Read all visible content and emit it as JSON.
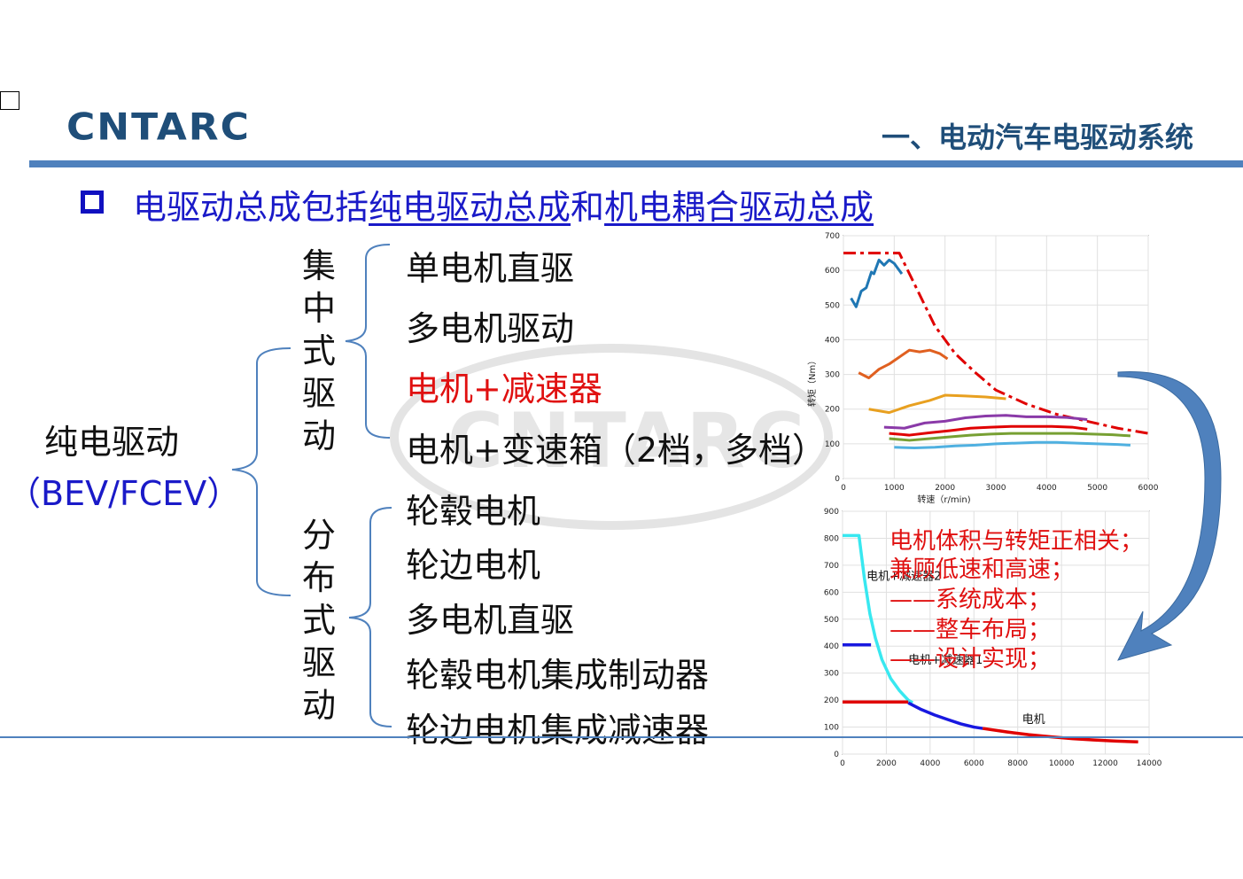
{
  "header": {
    "logo": "CNTARC",
    "section_title": "一、电动汽车电驱动系统"
  },
  "headline": {
    "part1": "电驱动总成包括",
    "part2": "纯电驱动总成",
    "part3": "和",
    "part4": "机电耦合驱动总成"
  },
  "tree": {
    "root_line1": "纯电驱动",
    "root_line2": "（BEV/FCEV）",
    "centralized": {
      "label_chars": [
        "集",
        "中",
        "式",
        "驱",
        "动"
      ],
      "items": [
        "单电机直驱",
        "多电机驱动",
        "电机+减速器",
        "电机+变速箱（2档，多档）"
      ]
    },
    "distributed": {
      "label_chars": [
        "分",
        "布",
        "式",
        "驱",
        "动"
      ],
      "items": [
        "轮毂电机",
        "轮边电机",
        "多电机直驱",
        "轮毂电机集成制动器",
        "轮边电机集成减速器"
      ]
    }
  },
  "chart_data": [
    {
      "type": "line",
      "title": "",
      "xlabel": "转速（r/min)",
      "ylabel": "转矩（Nm）",
      "xlim": [
        0,
        6000
      ],
      "ylim": [
        0,
        700
      ],
      "xticks": [
        0,
        1000,
        2000,
        3000,
        4000,
        5000,
        6000
      ],
      "yticks": [
        0,
        100,
        200,
        300,
        400,
        500,
        600,
        700
      ],
      "series": [
        {
          "color": "#e00000",
          "dashed": true,
          "x": [
            0,
            1100,
            1400,
            1800,
            2200,
            2600,
            3000,
            3600,
            4200,
            4800,
            5400,
            6000
          ],
          "y": [
            650,
            650,
            560,
            440,
            360,
            305,
            255,
            215,
            185,
            165,
            145,
            130
          ]
        },
        {
          "color": "#1f77b4",
          "x": [
            150,
            250,
            350,
            450,
            550,
            600,
            700,
            800,
            900,
            1000,
            1050,
            1150
          ],
          "y": [
            520,
            495,
            540,
            550,
            595,
            590,
            630,
            615,
            630,
            620,
            610,
            590
          ]
        },
        {
          "color": "#e06020",
          "x": [
            300,
            500,
            700,
            900,
            1100,
            1300,
            1500,
            1700,
            1900,
            2050
          ],
          "y": [
            305,
            290,
            315,
            330,
            350,
            370,
            365,
            370,
            360,
            345
          ]
        },
        {
          "color": "#e8a020",
          "x": [
            500,
            900,
            1300,
            1700,
            2000,
            2400,
            2800,
            3200
          ],
          "y": [
            200,
            190,
            210,
            225,
            240,
            238,
            235,
            230
          ]
        },
        {
          "color": "#8a3aa8",
          "x": [
            800,
            1200,
            1600,
            2000,
            2400,
            2800,
            3200,
            3600,
            4000,
            4400,
            4800
          ],
          "y": [
            148,
            145,
            160,
            165,
            175,
            180,
            182,
            178,
            178,
            176,
            170
          ]
        },
        {
          "color": "#e00000",
          "x": [
            900,
            1300,
            1700,
            2100,
            2500,
            2900,
            3300,
            3700,
            4100,
            4500,
            4800
          ],
          "y": [
            130,
            125,
            132,
            138,
            145,
            148,
            150,
            150,
            150,
            148,
            142
          ]
        },
        {
          "color": "#77a033",
          "x": [
            900,
            1300,
            1700,
            2100,
            2500,
            2900,
            3300,
            3700,
            4100,
            4500,
            4900,
            5300,
            5650
          ],
          "y": [
            115,
            110,
            115,
            120,
            125,
            128,
            130,
            130,
            130,
            130,
            128,
            126,
            123
          ]
        },
        {
          "color": "#4fb0e0",
          "x": [
            1000,
            1400,
            1800,
            2200,
            2600,
            3000,
            3400,
            3800,
            4200,
            4600,
            5000,
            5400,
            5650
          ],
          "y": [
            90,
            88,
            90,
            94,
            96,
            100,
            102,
            104,
            104,
            102,
            100,
            98,
            96
          ]
        }
      ]
    },
    {
      "type": "line",
      "title": "",
      "xlabel": "",
      "ylabel": "",
      "xlim": [
        0,
        14000
      ],
      "ylim": [
        0,
        900
      ],
      "xticks": [
        0,
        2000,
        4000,
        6000,
        8000,
        10000,
        12000,
        14000
      ],
      "yticks": [
        0,
        100,
        200,
        300,
        400,
        500,
        600,
        700,
        800,
        900
      ],
      "annotations": [
        "电机+减速器2",
        "电机+减速器1",
        "电机"
      ],
      "series": [
        {
          "color": "#38e8f0",
          "x": [
            0,
            750,
            1000,
            1250,
            1500,
            1800,
            2200,
            2600,
            3000,
            3200
          ],
          "y": [
            810,
            810,
            650,
            520,
            430,
            350,
            280,
            235,
            200,
            190
          ]
        },
        {
          "color": "#1818e0",
          "x": [
            0,
            1300
          ],
          "y": [
            405,
            405
          ]
        },
        {
          "color": "#1818e0",
          "x": [
            3000,
            3600,
            4200,
            4800,
            5400,
            6000,
            6400
          ],
          "y": [
            190,
            165,
            145,
            128,
            112,
            100,
            95
          ]
        },
        {
          "color": "#e00000",
          "x": [
            0,
            3000
          ],
          "y": [
            193,
            193
          ]
        },
        {
          "color": "#e00000",
          "x": [
            6400,
            7500,
            8500,
            9500,
            10500,
            11500,
            12500,
            13500
          ],
          "y": [
            95,
            82,
            72,
            64,
            57,
            52,
            48,
            45
          ]
        }
      ]
    }
  ],
  "notes": [
    "电机体积与转矩正相关；",
    "兼顾低速和高速；",
    "——系统成本；",
    "——整车布局；",
    "——设计实现；"
  ]
}
